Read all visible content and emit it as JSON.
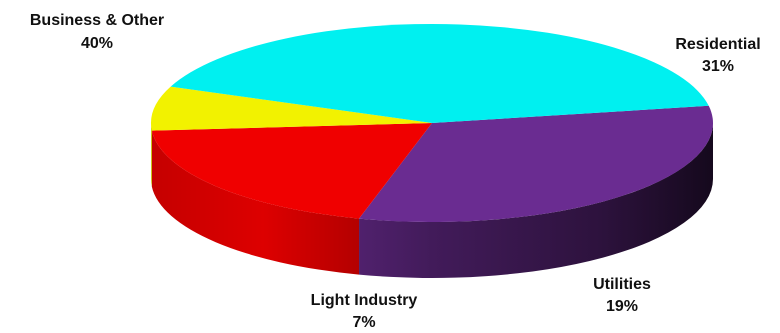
{
  "chart_data": {
    "type": "pie",
    "style": "3d",
    "title": "",
    "slices": [
      {
        "name": "Residential",
        "value": 31,
        "label": "31%",
        "color": "#6a2c91"
      },
      {
        "name": "Utilities",
        "value": 19,
        "label": "19%",
        "color": "#f00000"
      },
      {
        "name": "Light Industry",
        "value": 7,
        "label": "7%",
        "color": "#f2f200"
      },
      {
        "name": "Business & Other",
        "value": 40,
        "label": "40%",
        "color": "#00f0f0"
      }
    ]
  }
}
